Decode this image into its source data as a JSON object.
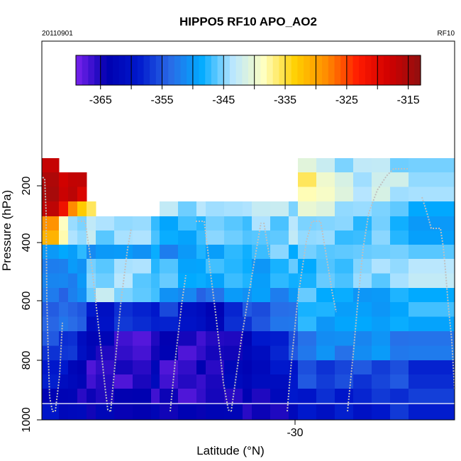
{
  "chart_data": {
    "type": "heatmap",
    "title": "HIPPO5 RF10 APO_AO2",
    "date_label": "20110901",
    "flight_label": "RF10",
    "xlabel": "Latitude (°N)",
    "ylabel": "Pressure (hPa)",
    "x_ticks": [
      "-30"
    ],
    "y_ticks": [
      "200",
      "400",
      "600",
      "800",
      "1000"
    ],
    "y_reversed": true,
    "colorbar": {
      "ticks": [
        "-365",
        "-355",
        "-345",
        "-335",
        "-325",
        "-315"
      ],
      "min": -369,
      "max": -313,
      "colors": [
        "#7a22ee",
        "#0000b0",
        "#0018cc",
        "#2a6ae6",
        "#00aaff",
        "#b8e6ff",
        "#ffffc0",
        "#ffd000",
        "#ff8c00",
        "#ff1a00",
        "#d00000",
        "#901010"
      ]
    },
    "cells": [
      {
        "col": 0,
        "row": 0,
        "v": -316
      },
      {
        "col": 0,
        "row": 1,
        "v": -316
      },
      {
        "col": 1,
        "row": 1,
        "v": -317
      },
      {
        "col": 2,
        "row": 1,
        "v": -317
      },
      {
        "col": 3,
        "row": 1,
        "v": -318
      },
      {
        "col": 0,
        "row": 2,
        "v": -316
      },
      {
        "col": 1,
        "row": 2,
        "v": -322
      },
      {
        "col": 2,
        "row": 2,
        "v": -327
      },
      {
        "col": 3,
        "row": 2,
        "v": -333
      },
      {
        "col": 4,
        "row": 2,
        "v": -337
      },
      {
        "col": 0,
        "row": 3,
        "v": -330
      },
      {
        "col": 1,
        "row": 3,
        "v": -338
      },
      {
        "col": 2,
        "row": 3,
        "v": -345
      },
      {
        "col": 3,
        "row": 3,
        "v": -344
      },
      {
        "col": 4,
        "row": 3,
        "v": -343
      },
      {
        "col": 0,
        "row": 4,
        "v": -350
      },
      {
        "col": 1,
        "row": 4,
        "v": -350
      },
      {
        "col": 2,
        "row": 4,
        "v": -349
      },
      {
        "col": 3,
        "row": 4,
        "v": -348
      },
      {
        "col": 4,
        "row": 4,
        "v": -350
      },
      {
        "col": 0,
        "row": 5,
        "v": -351
      },
      {
        "col": 1,
        "row": 5,
        "v": -352
      },
      {
        "col": 2,
        "row": 5,
        "v": -351
      },
      {
        "col": 3,
        "row": 5,
        "v": -350
      },
      {
        "col": 4,
        "row": 5,
        "v": -346
      },
      {
        "col": 0,
        "row": 6,
        "v": -353
      },
      {
        "col": 1,
        "row": 6,
        "v": -353
      },
      {
        "col": 2,
        "row": 6,
        "v": -352
      },
      {
        "col": 3,
        "row": 6,
        "v": -352
      },
      {
        "col": 4,
        "row": 6,
        "v": -345
      },
      {
        "col": 0,
        "row": 7,
        "v": -354
      },
      {
        "col": 1,
        "row": 7,
        "v": -354
      },
      {
        "col": 2,
        "row": 7,
        "v": -353
      },
      {
        "col": 3,
        "row": 7,
        "v": -355
      },
      {
        "col": 4,
        "row": 7,
        "v": -360
      },
      {
        "col": 0,
        "row": 8,
        "v": -356
      },
      {
        "col": 1,
        "row": 8,
        "v": -357
      },
      {
        "col": 2,
        "row": 8,
        "v": -358
      },
      {
        "col": 3,
        "row": 8,
        "v": -360
      },
      {
        "col": 4,
        "row": 8,
        "v": -363
      },
      {
        "col": 0,
        "row": 9,
        "v": -359
      },
      {
        "col": 1,
        "row": 9,
        "v": -360
      },
      {
        "col": 2,
        "row": 9,
        "v": -362
      },
      {
        "col": 3,
        "row": 9,
        "v": -364
      },
      {
        "col": 4,
        "row": 9,
        "v": -366
      },
      {
        "col": 0,
        "row": 10,
        "v": -362
      },
      {
        "col": 1,
        "row": 10,
        "v": -363
      },
      {
        "col": 2,
        "row": 10,
        "v": -364
      },
      {
        "col": 3,
        "row": 10,
        "v": -365
      },
      {
        "col": 4,
        "row": 10,
        "v": -365
      },
      {
        "col": 0,
        "row": 11,
        "v": -360
      },
      {
        "col": 1,
        "row": 11,
        "v": -361
      },
      {
        "col": 2,
        "row": 11,
        "v": -362
      },
      {
        "col": 3,
        "row": 11,
        "v": -363
      },
      {
        "col": 4,
        "row": 11,
        "v": -364
      },
      {
        "col": 5,
        "row": 3,
        "v": -345
      },
      {
        "col": 6,
        "row": 3,
        "v": -344
      },
      {
        "col": 7,
        "row": 3,
        "v": -345
      },
      {
        "col": 8,
        "row": 3,
        "v": -346
      },
      {
        "col": 5,
        "row": 4,
        "v": -350
      },
      {
        "col": 6,
        "row": 4,
        "v": -351
      },
      {
        "col": 7,
        "row": 4,
        "v": -350
      },
      {
        "col": 8,
        "row": 4,
        "v": -349
      },
      {
        "col": 5,
        "row": 5,
        "v": -345
      },
      {
        "col": 6,
        "row": 5,
        "v": -344
      },
      {
        "col": 7,
        "row": 5,
        "v": -345
      },
      {
        "col": 8,
        "row": 5,
        "v": -347
      },
      {
        "col": 5,
        "row": 6,
        "v": -343
      },
      {
        "col": 6,
        "row": 6,
        "v": -344
      },
      {
        "col": 7,
        "row": 6,
        "v": -346
      },
      {
        "col": 8,
        "row": 6,
        "v": -348
      },
      {
        "col": 5,
        "row": 7,
        "v": -360
      },
      {
        "col": 6,
        "row": 7,
        "v": -358
      },
      {
        "col": 7,
        "row": 7,
        "v": -357
      },
      {
        "col": 8,
        "row": 7,
        "v": -359
      },
      {
        "col": 5,
        "row": 8,
        "v": -364
      },
      {
        "col": 6,
        "row": 8,
        "v": -366
      },
      {
        "col": 7,
        "row": 8,
        "v": -368
      },
      {
        "col": 8,
        "row": 8,
        "v": -364
      },
      {
        "col": 5,
        "row": 9,
        "v": -366
      },
      {
        "col": 6,
        "row": 9,
        "v": -366
      },
      {
        "col": 7,
        "row": 9,
        "v": -365
      },
      {
        "col": 8,
        "row": 9,
        "v": -363
      },
      {
        "col": 5,
        "row": 10,
        "v": -364
      },
      {
        "col": 6,
        "row": 10,
        "v": -364
      },
      {
        "col": 7,
        "row": 10,
        "v": -365
      },
      {
        "col": 8,
        "row": 10,
        "v": -366
      },
      {
        "col": 5,
        "row": 11,
        "v": -363
      },
      {
        "col": 6,
        "row": 11,
        "v": -363
      },
      {
        "col": 7,
        "row": 11,
        "v": -364
      },
      {
        "col": 8,
        "row": 11,
        "v": -364
      },
      {
        "col": 9,
        "row": 2,
        "v": -344
      },
      {
        "col": 10,
        "row": 2,
        "v": -345
      },
      {
        "col": 11,
        "row": 2,
        "v": -344
      },
      {
        "col": 9,
        "row": 3,
        "v": -349
      },
      {
        "col": 10,
        "row": 3,
        "v": -348
      },
      {
        "col": 11,
        "row": 3,
        "v": -347
      },
      {
        "col": 9,
        "row": 4,
        "v": -351
      },
      {
        "col": 10,
        "row": 4,
        "v": -350
      },
      {
        "col": 11,
        "row": 4,
        "v": -349
      },
      {
        "col": 9,
        "row": 5,
        "v": -347
      },
      {
        "col": 10,
        "row": 5,
        "v": -348
      },
      {
        "col": 11,
        "row": 5,
        "v": -349
      },
      {
        "col": 9,
        "row": 6,
        "v": -350
      },
      {
        "col": 10,
        "row": 6,
        "v": -352
      },
      {
        "col": 11,
        "row": 6,
        "v": -353
      },
      {
        "col": 9,
        "row": 7,
        "v": -357
      },
      {
        "col": 10,
        "row": 7,
        "v": -360
      },
      {
        "col": 11,
        "row": 7,
        "v": -362
      },
      {
        "col": 9,
        "row": 8,
        "v": -364
      },
      {
        "col": 10,
        "row": 8,
        "v": -366
      },
      {
        "col": 11,
        "row": 8,
        "v": -366
      },
      {
        "col": 9,
        "row": 9,
        "v": -366
      },
      {
        "col": 10,
        "row": 9,
        "v": -366
      },
      {
        "col": 11,
        "row": 9,
        "v": -365
      },
      {
        "col": 9,
        "row": 10,
        "v": -365
      },
      {
        "col": 10,
        "row": 10,
        "v": -366
      },
      {
        "col": 11,
        "row": 10,
        "v": -366
      },
      {
        "col": 9,
        "row": 11,
        "v": -364
      },
      {
        "col": 10,
        "row": 11,
        "v": -364
      },
      {
        "col": 11,
        "row": 11,
        "v": -363
      },
      {
        "col": 12,
        "row": 2,
        "v": -343
      },
      {
        "col": 13,
        "row": 2,
        "v": -344
      },
      {
        "col": 14,
        "row": 2,
        "v": -345
      },
      {
        "col": 12,
        "row": 3,
        "v": -346
      },
      {
        "col": 13,
        "row": 3,
        "v": -345
      },
      {
        "col": 14,
        "row": 3,
        "v": -347
      },
      {
        "col": 12,
        "row": 4,
        "v": -349
      },
      {
        "col": 13,
        "row": 4,
        "v": -348
      },
      {
        "col": 14,
        "row": 4,
        "v": -347
      },
      {
        "col": 12,
        "row": 5,
        "v": -348
      },
      {
        "col": 13,
        "row": 5,
        "v": -347
      },
      {
        "col": 14,
        "row": 5,
        "v": -349
      },
      {
        "col": 12,
        "row": 6,
        "v": -353
      },
      {
        "col": 13,
        "row": 6,
        "v": -351
      },
      {
        "col": 14,
        "row": 6,
        "v": -350
      },
      {
        "col": 12,
        "row": 7,
        "v": -362
      },
      {
        "col": 13,
        "row": 7,
        "v": -358
      },
      {
        "col": 14,
        "row": 7,
        "v": -356
      },
      {
        "col": 12,
        "row": 8,
        "v": -366
      },
      {
        "col": 13,
        "row": 8,
        "v": -364
      },
      {
        "col": 14,
        "row": 8,
        "v": -363
      },
      {
        "col": 12,
        "row": 9,
        "v": -365
      },
      {
        "col": 13,
        "row": 9,
        "v": -363
      },
      {
        "col": 14,
        "row": 9,
        "v": -362
      },
      {
        "col": 12,
        "row": 10,
        "v": -366
      },
      {
        "col": 13,
        "row": 10,
        "v": -365
      },
      {
        "col": 14,
        "row": 10,
        "v": -364
      },
      {
        "col": 12,
        "row": 11,
        "v": -363
      },
      {
        "col": 13,
        "row": 11,
        "v": -364
      },
      {
        "col": 14,
        "row": 11,
        "v": -365
      },
      {
        "col": 15,
        "row": 2,
        "v": -342
      },
      {
        "col": 16,
        "row": 2,
        "v": -343
      },
      {
        "col": 17,
        "row": 2,
        "v": -344
      },
      {
        "col": 15,
        "row": 3,
        "v": -345
      },
      {
        "col": 16,
        "row": 3,
        "v": -346
      },
      {
        "col": 17,
        "row": 3,
        "v": -344
      },
      {
        "col": 15,
        "row": 4,
        "v": -347
      },
      {
        "col": 16,
        "row": 4,
        "v": -346
      },
      {
        "col": 17,
        "row": 4,
        "v": -348
      },
      {
        "col": 15,
        "row": 5,
        "v": -349
      },
      {
        "col": 16,
        "row": 5,
        "v": -348
      },
      {
        "col": 17,
        "row": 5,
        "v": -347
      },
      {
        "col": 15,
        "row": 6,
        "v": -350
      },
      {
        "col": 16,
        "row": 6,
        "v": -351
      },
      {
        "col": 17,
        "row": 6,
        "v": -350
      },
      {
        "col": 15,
        "row": 7,
        "v": -355
      },
      {
        "col": 16,
        "row": 7,
        "v": -354
      },
      {
        "col": 17,
        "row": 7,
        "v": -352
      },
      {
        "col": 15,
        "row": 8,
        "v": -360
      },
      {
        "col": 16,
        "row": 8,
        "v": -358
      },
      {
        "col": 17,
        "row": 8,
        "v": -356
      },
      {
        "col": 15,
        "row": 9,
        "v": -362
      },
      {
        "col": 16,
        "row": 9,
        "v": -360
      },
      {
        "col": 17,
        "row": 9,
        "v": -359
      },
      {
        "col": 15,
        "row": 10,
        "v": -364
      },
      {
        "col": 16,
        "row": 10,
        "v": -362
      },
      {
        "col": 17,
        "row": 10,
        "v": -360
      },
      {
        "col": 15,
        "row": 11,
        "v": -365
      },
      {
        "col": 16,
        "row": 11,
        "v": -364
      },
      {
        "col": 17,
        "row": 11,
        "v": -362
      },
      {
        "col": 18,
        "row": 0,
        "v": -340
      },
      {
        "col": 19,
        "row": 0,
        "v": -343
      },
      {
        "col": 20,
        "row": 0,
        "v": -344
      },
      {
        "col": 21,
        "row": 0,
        "v": -343
      },
      {
        "col": 22,
        "row": 0,
        "v": -344
      },
      {
        "col": 23,
        "row": 0,
        "v": -345
      },
      {
        "col": 24,
        "row": 0,
        "v": -346
      },
      {
        "col": 18,
        "row": 1,
        "v": -337
      },
      {
        "col": 19,
        "row": 1,
        "v": -339
      },
      {
        "col": 20,
        "row": 1,
        "v": -342
      },
      {
        "col": 21,
        "row": 1,
        "v": -343
      },
      {
        "col": 22,
        "row": 1,
        "v": -342
      },
      {
        "col": 23,
        "row": 1,
        "v": -343
      },
      {
        "col": 24,
        "row": 1,
        "v": -344
      },
      {
        "col": 18,
        "row": 2,
        "v": -340
      },
      {
        "col": 19,
        "row": 2,
        "v": -342
      },
      {
        "col": 20,
        "row": 2,
        "v": -344
      },
      {
        "col": 21,
        "row": 2,
        "v": -345
      },
      {
        "col": 22,
        "row": 2,
        "v": -344
      },
      {
        "col": 23,
        "row": 2,
        "v": -346
      },
      {
        "col": 24,
        "row": 2,
        "v": -350
      },
      {
        "col": 18,
        "row": 3,
        "v": -344
      },
      {
        "col": 19,
        "row": 3,
        "v": -345
      },
      {
        "col": 20,
        "row": 3,
        "v": -346
      },
      {
        "col": 21,
        "row": 3,
        "v": -347
      },
      {
        "col": 22,
        "row": 3,
        "v": -346
      },
      {
        "col": 23,
        "row": 3,
        "v": -347
      },
      {
        "col": 24,
        "row": 3,
        "v": -350
      },
      {
        "col": 18,
        "row": 4,
        "v": -346
      },
      {
        "col": 19,
        "row": 4,
        "v": -345
      },
      {
        "col": 20,
        "row": 4,
        "v": -346
      },
      {
        "col": 21,
        "row": 4,
        "v": -347
      },
      {
        "col": 22,
        "row": 4,
        "v": -345
      },
      {
        "col": 23,
        "row": 4,
        "v": -346
      },
      {
        "col": 24,
        "row": 4,
        "v": -345
      },
      {
        "col": 18,
        "row": 5,
        "v": -348
      },
      {
        "col": 19,
        "row": 5,
        "v": -347
      },
      {
        "col": 20,
        "row": 5,
        "v": -346
      },
      {
        "col": 21,
        "row": 5,
        "v": -345
      },
      {
        "col": 22,
        "row": 5,
        "v": -345
      },
      {
        "col": 23,
        "row": 5,
        "v": -344
      },
      {
        "col": 24,
        "row": 5,
        "v": -344
      },
      {
        "col": 18,
        "row": 6,
        "v": -347
      },
      {
        "col": 19,
        "row": 6,
        "v": -348
      },
      {
        "col": 20,
        "row": 6,
        "v": -349
      },
      {
        "col": 21,
        "row": 6,
        "v": -349
      },
      {
        "col": 22,
        "row": 6,
        "v": -350
      },
      {
        "col": 23,
        "row": 6,
        "v": -349
      },
      {
        "col": 24,
        "row": 6,
        "v": -348
      },
      {
        "col": 18,
        "row": 7,
        "v": -348
      },
      {
        "col": 19,
        "row": 7,
        "v": -349
      },
      {
        "col": 20,
        "row": 7,
        "v": -349
      },
      {
        "col": 21,
        "row": 7,
        "v": -350
      },
      {
        "col": 22,
        "row": 7,
        "v": -349
      },
      {
        "col": 23,
        "row": 7,
        "v": -349
      },
      {
        "col": 24,
        "row": 7,
        "v": -348
      },
      {
        "col": 18,
        "row": 8,
        "v": -352
      },
      {
        "col": 19,
        "row": 8,
        "v": -351
      },
      {
        "col": 20,
        "row": 8,
        "v": -352
      },
      {
        "col": 21,
        "row": 8,
        "v": -351
      },
      {
        "col": 22,
        "row": 8,
        "v": -351
      },
      {
        "col": 23,
        "row": 8,
        "v": -352
      },
      {
        "col": 24,
        "row": 8,
        "v": -353
      },
      {
        "col": 18,
        "row": 9,
        "v": -356
      },
      {
        "col": 19,
        "row": 9,
        "v": -356
      },
      {
        "col": 20,
        "row": 9,
        "v": -356
      },
      {
        "col": 21,
        "row": 9,
        "v": -356
      },
      {
        "col": 22,
        "row": 9,
        "v": -356
      },
      {
        "col": 23,
        "row": 9,
        "v": -356
      },
      {
        "col": 24,
        "row": 9,
        "v": -357
      },
      {
        "col": 18,
        "row": 10,
        "v": -359
      },
      {
        "col": 19,
        "row": 10,
        "v": -358
      },
      {
        "col": 20,
        "row": 10,
        "v": -358
      },
      {
        "col": 21,
        "row": 10,
        "v": -358
      },
      {
        "col": 22,
        "row": 10,
        "v": -358
      },
      {
        "col": 23,
        "row": 10,
        "v": -357
      },
      {
        "col": 24,
        "row": 10,
        "v": -357
      },
      {
        "col": 18,
        "row": 11,
        "v": -360
      },
      {
        "col": 19,
        "row": 11,
        "v": -360
      },
      {
        "col": 20,
        "row": 11,
        "v": -359
      },
      {
        "col": 21,
        "row": 11,
        "v": -359
      },
      {
        "col": 22,
        "row": 11,
        "v": -359
      },
      {
        "col": 23,
        "row": 11,
        "v": -358
      },
      {
        "col": 24,
        "row": 11,
        "v": -358
      }
    ]
  }
}
